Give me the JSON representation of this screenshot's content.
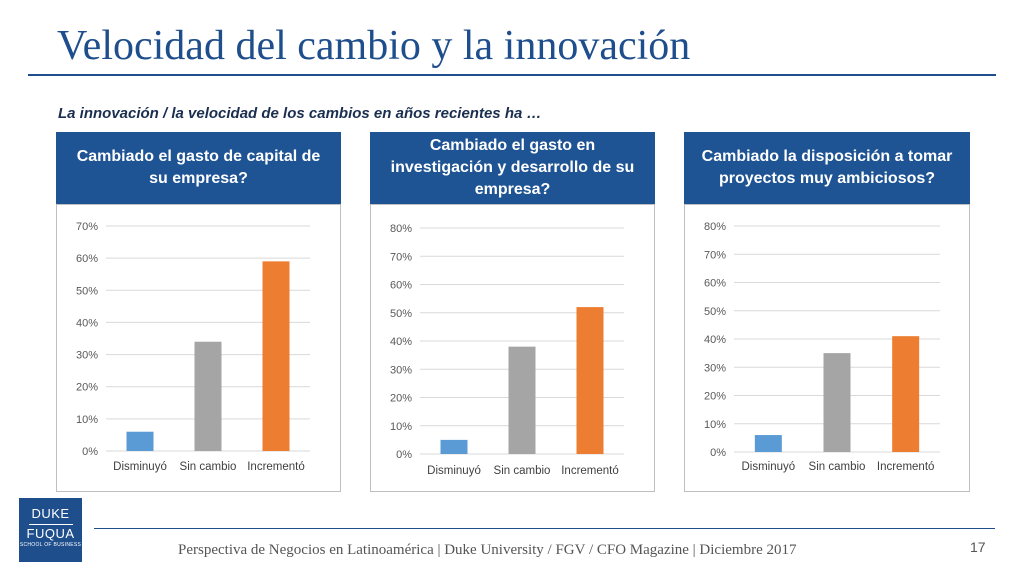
{
  "title": "Velocidad del cambio y la innovación",
  "subtitle": "La innovación / la velocidad de los cambios en años recientes ha …",
  "footer": {
    "text": "Perspectiva de Negocios en Latinoamérica | Duke University / FGV / CFO Magazine | Diciembre 2017",
    "page": "17"
  },
  "logo": {
    "line1": "DUKE",
    "line2": "FUQUA",
    "line3": "SCHOOL OF BUSINESS"
  },
  "colors": {
    "accent": "#1f5494",
    "disminuyo": "#5b9bd5",
    "sin_cambio": "#a5a5a5",
    "incremento": "#ed7d31"
  },
  "chart_data": [
    {
      "type": "bar",
      "title": "Cambiado el gasto de capital de su empresa?",
      "categories": [
        "Disminuyó",
        "Sin cambio",
        "Incrementó"
      ],
      "values": [
        6,
        34,
        59
      ],
      "colors": [
        "#5b9bd5",
        "#a5a5a5",
        "#ed7d31"
      ],
      "ylim": [
        0,
        70
      ],
      "yticks": [
        "0%",
        "10%",
        "20%",
        "30%",
        "40%",
        "50%",
        "60%",
        "70%"
      ],
      "grid": true
    },
    {
      "type": "bar",
      "title": "Cambiado el gasto en investigación y desarrollo de su empresa?",
      "categories": [
        "Disminuyó",
        "Sin cambio",
        "Incrementó"
      ],
      "values": [
        5,
        38,
        52
      ],
      "colors": [
        "#5b9bd5",
        "#a5a5a5",
        "#ed7d31"
      ],
      "ylim": [
        0,
        80
      ],
      "yticks": [
        "0%",
        "10%",
        "20%",
        "30%",
        "40%",
        "50%",
        "60%",
        "70%",
        "80%"
      ],
      "grid": true
    },
    {
      "type": "bar",
      "title": "Cambiado la disposición a tomar proyectos muy ambiciosos?",
      "categories": [
        "Disminuyó",
        "Sin cambio",
        "Incrementó"
      ],
      "values": [
        6,
        35,
        41
      ],
      "colors": [
        "#5b9bd5",
        "#a5a5a5",
        "#ed7d31"
      ],
      "ylim": [
        0,
        80
      ],
      "yticks": [
        "0%",
        "10%",
        "20%",
        "30%",
        "40%",
        "50%",
        "60%",
        "70%",
        "80%"
      ],
      "grid": true
    }
  ]
}
